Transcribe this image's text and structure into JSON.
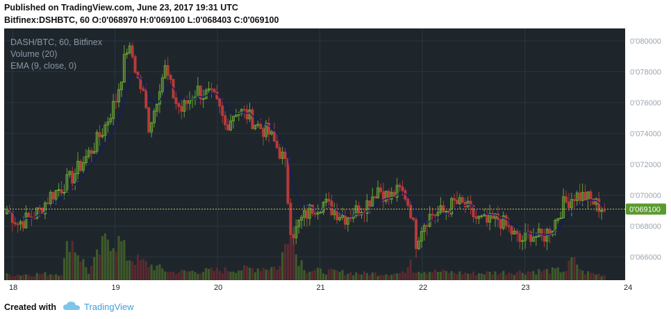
{
  "header": {
    "published": "Published on TradingView.com, June 23, 2017 19:31 UTC",
    "ohlc_line": "Bitfinex:DSHBTC, 60  O:0'068970 H:0'069100 L:0'068403 C:0'069100"
  },
  "legend": {
    "symbol": "DASH/BTC, 60, Bitfinex",
    "volume": "Volume (20)",
    "ema": "EMA (9, close, 0)"
  },
  "footer": {
    "created_with": "Created with",
    "brand": "TradingView"
  },
  "colors": {
    "background": "#1e262c",
    "grid": "#2a3540",
    "up": "#6aa334",
    "down": "#b83a3a",
    "up_volume": "#3f5a2a",
    "down_volume": "#5a2a30",
    "ema": "#0f1a6e",
    "price_line": "#c9c35a",
    "price_label_bg": "#5a9a2f",
    "axis_bg": "#ffffff"
  },
  "chart_data": {
    "type": "candlestick",
    "ylim": [
      0.0645,
      0.0808
    ],
    "y_ticks": [
      "0'066000",
      "0'068000",
      "0'070000",
      "0'072000",
      "0'074000",
      "0'076000",
      "0'078000",
      "0'080000"
    ],
    "x_ticks": [
      "18",
      "19",
      "20",
      "21",
      "22",
      "23",
      "24"
    ],
    "last_price": 0.0691,
    "last_price_label": "0'069100",
    "anchors": [
      [
        0,
        0.0691
      ],
      [
        4,
        0.0682
      ],
      [
        8,
        0.0685
      ],
      [
        12,
        0.069
      ],
      [
        16,
        0.07
      ],
      [
        20,
        0.0705
      ],
      [
        24,
        0.0712
      ],
      [
        28,
        0.0722
      ],
      [
        32,
        0.0732
      ],
      [
        36,
        0.0745
      ],
      [
        40,
        0.0762
      ],
      [
        42,
        0.0778
      ],
      [
        44,
        0.0795
      ],
      [
        46,
        0.079
      ],
      [
        48,
        0.0775
      ],
      [
        50,
        0.0765
      ],
      [
        52,
        0.0745
      ],
      [
        54,
        0.0755
      ],
      [
        56,
        0.0772
      ],
      [
        58,
        0.0782
      ],
      [
        60,
        0.077
      ],
      [
        62,
        0.076
      ],
      [
        64,
        0.0755
      ],
      [
        66,
        0.076
      ],
      [
        68,
        0.0765
      ],
      [
        70,
        0.0768
      ],
      [
        72,
        0.0765
      ],
      [
        74,
        0.0765
      ],
      [
        76,
        0.0762
      ],
      [
        78,
        0.0755
      ],
      [
        80,
        0.0745
      ],
      [
        84,
        0.0755
      ],
      [
        88,
        0.0752
      ],
      [
        92,
        0.0745
      ],
      [
        96,
        0.074
      ],
      [
        100,
        0.0728
      ],
      [
        102,
        0.0715
      ],
      [
        104,
        0.0685
      ],
      [
        106,
        0.0675
      ],
      [
        108,
        0.0684
      ],
      [
        112,
        0.0692
      ],
      [
        116,
        0.0695
      ],
      [
        120,
        0.069
      ],
      [
        124,
        0.0686
      ],
      [
        128,
        0.069
      ],
      [
        132,
        0.0695
      ],
      [
        136,
        0.0705
      ],
      [
        140,
        0.0698
      ],
      [
        144,
        0.0703
      ],
      [
        146,
        0.07
      ],
      [
        148,
        0.069
      ],
      [
        150,
        0.067
      ],
      [
        152,
        0.068
      ],
      [
        154,
        0.0685
      ],
      [
        156,
        0.0688
      ],
      [
        160,
        0.0689
      ],
      [
        164,
        0.0695
      ],
      [
        168,
        0.0693
      ],
      [
        172,
        0.0685
      ],
      [
        176,
        0.0682
      ],
      [
        180,
        0.0685
      ],
      [
        184,
        0.0678
      ],
      [
        188,
        0.067
      ],
      [
        192,
        0.0675
      ],
      [
        196,
        0.0672
      ],
      [
        200,
        0.068
      ],
      [
        204,
        0.0694
      ],
      [
        208,
        0.07
      ],
      [
        212,
        0.0699
      ],
      [
        216,
        0.0694
      ],
      [
        219,
        0.0691
      ]
    ],
    "volume_anchors": [
      [
        0,
        0.08
      ],
      [
        20,
        0.1
      ],
      [
        23,
        0.65
      ],
      [
        30,
        0.12
      ],
      [
        37,
        0.65
      ],
      [
        42,
        0.55
      ],
      [
        44,
        0.35
      ],
      [
        60,
        0.12
      ],
      [
        80,
        0.15
      ],
      [
        100,
        0.2
      ],
      [
        102,
        0.55
      ],
      [
        104,
        1.0
      ],
      [
        106,
        0.4
      ],
      [
        110,
        0.15
      ],
      [
        130,
        0.1
      ],
      [
        145,
        0.1
      ],
      [
        147,
        0.22
      ],
      [
        148,
        0.45
      ],
      [
        149,
        0.15
      ],
      [
        170,
        0.1
      ],
      [
        205,
        0.15
      ],
      [
        207,
        0.3
      ],
      [
        209,
        0.25
      ],
      [
        211,
        0.12
      ],
      [
        219,
        0.08
      ]
    ]
  }
}
